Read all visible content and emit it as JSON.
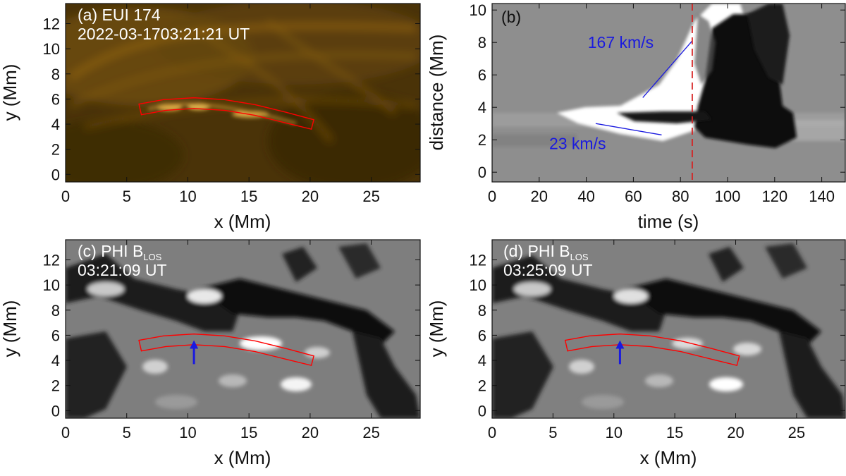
{
  "chart_data": [
    {
      "type": "image",
      "panel_label": "(a) EUI 174",
      "timestamp": "2022-03-1703:21:21 UT",
      "xlabel": "x (Mm)",
      "ylabel": "y (Mm)",
      "xlim": [
        0,
        29
      ],
      "ylim": [
        -0.6,
        13.6
      ],
      "xticks": [
        "0",
        "5",
        "10",
        "15",
        "20",
        "25"
      ],
      "yticks": [
        "0",
        "2",
        "4",
        "6",
        "8",
        "10",
        "12"
      ],
      "colormap": "#b07a10",
      "slit_color": "#ff0000"
    },
    {
      "type": "time-distance",
      "panel_label": "(b)",
      "xlabel": "time (s)",
      "ylabel": "distance (Mm)",
      "xlim": [
        0,
        150
      ],
      "ylim": [
        -0.6,
        10.4
      ],
      "xticks": [
        "0",
        "20",
        "40",
        "60",
        "80",
        "100",
        "120",
        "140"
      ],
      "yticks": [
        "0",
        "2",
        "4",
        "6",
        "8",
        "10"
      ],
      "marker_time": 85,
      "marker_color": "#d62020",
      "fit_lines": [
        {
          "label": "167 km/s",
          "x": [
            64,
            85
          ],
          "y": [
            4.6,
            8.1
          ],
          "color": "#1a1adf"
        },
        {
          "label": "23 km/s",
          "x": [
            44,
            72
          ],
          "y": [
            3.0,
            2.3
          ],
          "color": "#1a1adf"
        }
      ]
    },
    {
      "type": "image",
      "panel_label": "(c) PHI B",
      "panel_label_sub": "LOS",
      "timestamp": "03:21:09 UT",
      "xlabel": "x (Mm)",
      "ylabel": "y (Mm)",
      "xlim": [
        0,
        29
      ],
      "ylim": [
        -0.6,
        13.6
      ],
      "xticks": [
        "0",
        "5",
        "10",
        "15",
        "20",
        "25"
      ],
      "yticks": [
        "0",
        "2",
        "4",
        "6",
        "8",
        "10",
        "12"
      ],
      "arrow": {
        "x": 10.5,
        "y_from": 3.7,
        "y_to": 5.6,
        "color": "#1a1adf"
      }
    },
    {
      "type": "image",
      "panel_label": "(d) PHI B",
      "panel_label_sub": "LOS",
      "timestamp": "03:25:09 UT",
      "xlabel": "x (Mm)",
      "ylabel": "y (Mm)",
      "xlim": [
        0,
        29
      ],
      "ylim": [
        -0.6,
        13.6
      ],
      "xticks": [
        "0",
        "5",
        "10",
        "15",
        "20",
        "25"
      ],
      "yticks": [
        "0",
        "2",
        "4",
        "6",
        "8",
        "10",
        "12"
      ],
      "arrow": {
        "x": 10.5,
        "y_from": 3.7,
        "y_to": 5.6,
        "color": "#1a1adf"
      }
    }
  ],
  "slit": {
    "upper": [
      [
        6.0,
        5.6
      ],
      [
        8.0,
        5.95
      ],
      [
        10.5,
        6.1
      ],
      [
        13.0,
        5.95
      ],
      [
        15.5,
        5.55
      ],
      [
        18.0,
        4.95
      ],
      [
        20.3,
        4.35
      ]
    ],
    "lower": [
      [
        6.2,
        4.75
      ],
      [
        8.2,
        5.1
      ],
      [
        10.5,
        5.25
      ],
      [
        13.0,
        5.1
      ],
      [
        15.5,
        4.7
      ],
      [
        18.0,
        4.1
      ],
      [
        20.1,
        3.6
      ]
    ]
  }
}
